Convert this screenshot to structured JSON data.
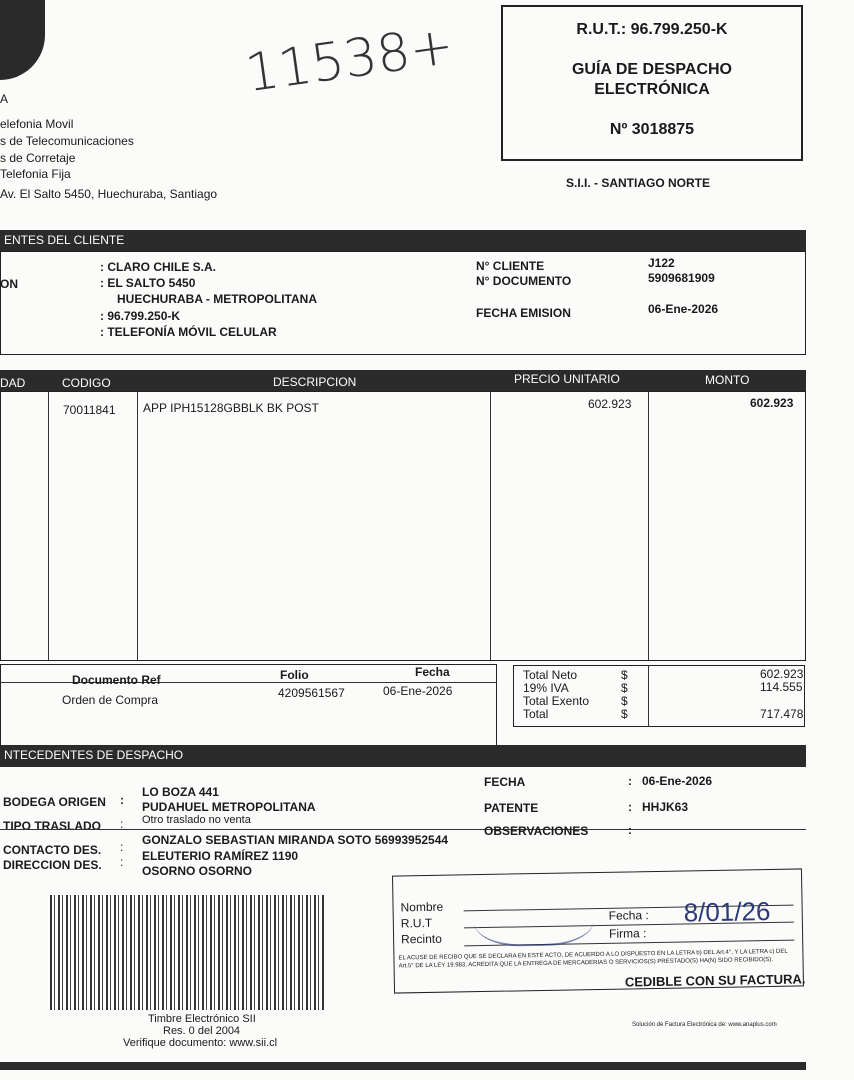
{
  "company": {
    "logo_letter": "A",
    "lines": [
      "elefonia Movil",
      "s de Telecomunicaciones",
      "s de Corretaje",
      "Telefonia Fija",
      "Av. El Salto 5450, Huechuraba, Santiago"
    ]
  },
  "handwritten_note": "11538+",
  "doc_box": {
    "rut": "R.U.T.: 96.799.250-K",
    "title1": "GUÍA DE DESPACHO",
    "title2": "ELECTRÓNICA",
    "number": "Nº 3018875",
    "sii": "S.I.I. - SANTIAGO NORTE"
  },
  "client": {
    "header": "ENTES DEL CLIENTE",
    "label_partial": "ON",
    "name": ": CLARO CHILE S.A.",
    "address1": ": EL SALTO 5450",
    "address2": "HUECHURABA -  METROPOLITANA",
    "rut": ": 96.799.250-K",
    "giro": ": TELEFONÍA MÓVIL CELULAR",
    "fields": [
      {
        "label": "N° CLIENTE",
        "value": "J122"
      },
      {
        "label": "N° DOCUMENTO",
        "value": "5909681909"
      },
      {
        "label": "FECHA EMISION",
        "value": "06-Ene-2026"
      }
    ]
  },
  "items": {
    "headers": [
      "DAD",
      "CODIGO",
      "DESCRIPCION",
      "PRECIO UNITARIO",
      "MONTO"
    ],
    "rows": [
      {
        "codigo": "70011841",
        "descripcion": "APP IPH15128GBBLK BK POST",
        "precio": "602.923",
        "monto": "602.923"
      }
    ]
  },
  "reference": {
    "headers": [
      "Documento Ref",
      "Folio",
      "Fecha"
    ],
    "rows": [
      {
        "doc": "Orden de Compra",
        "folio": "4209561567",
        "fecha": "06-Ene-2026"
      }
    ]
  },
  "totals": [
    {
      "label": "Total Neto",
      "cur": "$",
      "value": "602.923"
    },
    {
      "label": "19% IVA",
      "cur": "$",
      "value": "114.555"
    },
    {
      "label": "Total Exento",
      "cur": "$",
      "value": ""
    },
    {
      "label": "Total",
      "cur": "$",
      "value": "717.478"
    }
  ],
  "dispatch": {
    "header": "NTECEDENTES DE DESPACHO",
    "bodega_label": "BODEGA ORIGEN",
    "bodega1": "LO BOZA 441",
    "bodega2": "PUDAHUEL  METROPOLITANA",
    "tipo_label": "TIPO TRASLADO",
    "tipo": "Otro traslado no venta",
    "contacto_label": "CONTACTO DES.",
    "contacto": "GONZALO SEBASTIAN MIRANDA SOTO 56993952544",
    "direccion_label": "DIRECCION DES.",
    "direccion1": "ELEUTERIO RAMÍREZ 1190",
    "direccion2": "OSORNO   OSORNO",
    "fecha_label": "FECHA",
    "fecha": "06-Ene-2026",
    "patente_label": "PATENTE",
    "patente": "HHJK63",
    "obs_label": "OBSERVACIONES"
  },
  "receipt": {
    "nombre": "Nombre",
    "rut": "R.U.T",
    "recinto": "Recinto",
    "fecha": "Fecha :",
    "firma": "Firma :",
    "legal": "EL ACUSE DE RECIBO QUE SE DECLARA EN ESTE ACTO, DE ACUERDO A LO DISPUESTO EN LA LETRA b) DEL Art.4°, Y LA LETRA c) DEL Art.5° DE LA LEY 19.983, ACREDITA QUE LA ENTREGA DE MERCADERIAS O SERVICIOS(S) PRESTADO(S) HA(N) SIDO RECIBIDO(S).",
    "cedible": "CEDIBLE CON SU FACTURA.",
    "hand_date": "8/01/26"
  },
  "stamp": {
    "line1": "Timbre Electrónico SII",
    "line2": "Res. 0 del 2004",
    "line3": "Verifique documento: www.sii.cl"
  },
  "footer": "Solución de Factura Electrónica de: www.anaplus.com"
}
